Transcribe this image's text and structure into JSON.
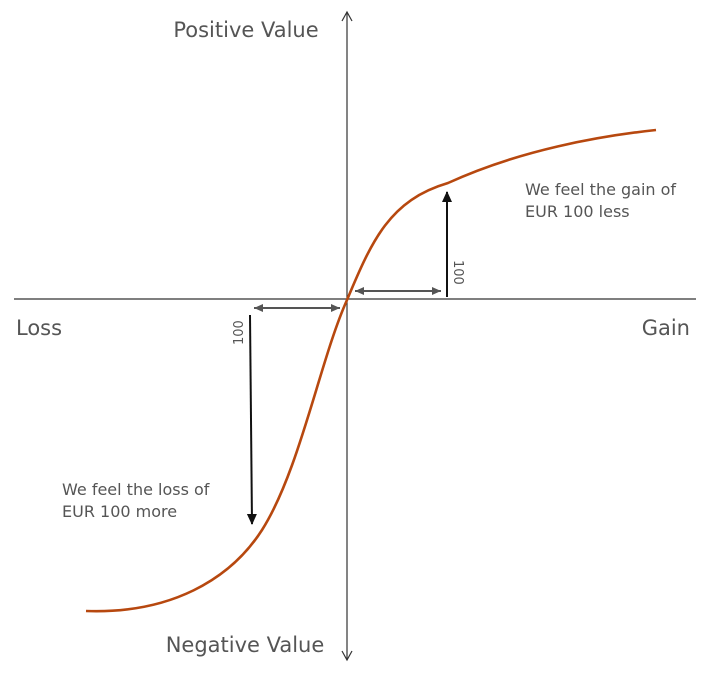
{
  "axes": {
    "top_label": "Positive Value",
    "bottom_label": "Negative Value",
    "left_label": "Loss",
    "right_label": "Gain"
  },
  "annotations": {
    "gain_note": [
      "We feel the gain of",
      "EUR 100 less"
    ],
    "loss_note": [
      "We feel the loss of",
      "EUR 100 more"
    ],
    "gain_amount": "100",
    "loss_amount": "100"
  },
  "colors": {
    "curve": "#b7480f",
    "axis": "#333333",
    "arrow_gray": "#555555",
    "arrow_black": "#111111",
    "text": "#555555"
  }
}
